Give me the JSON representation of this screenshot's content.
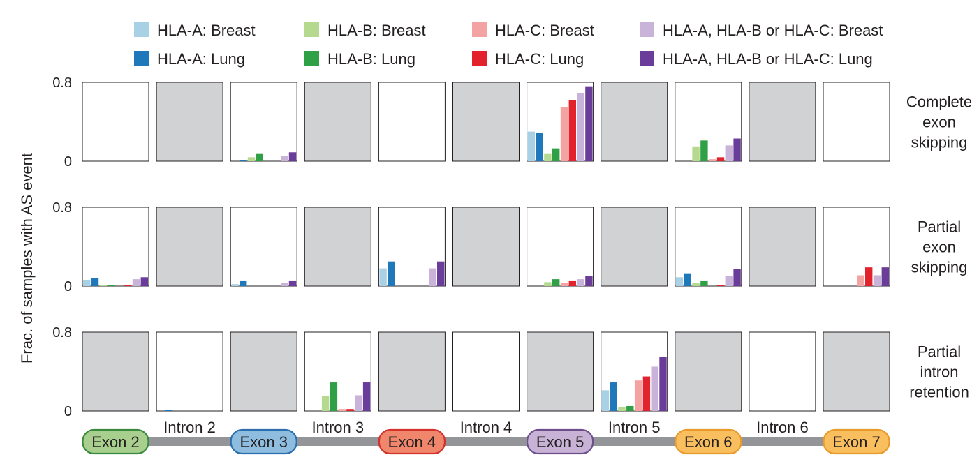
{
  "chart_data": {
    "type": "bar",
    "ylabel": "Frac. of samples with AS event",
    "ylim": [
      0,
      0.8
    ],
    "yticks": [
      "0",
      "0.8"
    ],
    "columns": [
      "Exon 2",
      "Intron 2",
      "Exon 3",
      "Intron 3",
      "Exon 4",
      "Intron 4",
      "Exon 5",
      "Intron 5",
      "Exon 6",
      "Intron 6",
      "Exon 7"
    ],
    "column_kinds": [
      "exon",
      "intron",
      "exon",
      "intron",
      "exon",
      "intron",
      "exon",
      "intron",
      "exon",
      "intron",
      "exon"
    ],
    "exon_colors": {
      "Exon 2": {
        "fill": "#a9cf8f",
        "stroke": "#3a8a3e"
      },
      "Exon 3": {
        "fill": "#8fbde0",
        "stroke": "#2a6fae"
      },
      "Exon 4": {
        "fill": "#f0876c",
        "stroke": "#d2312c"
      },
      "Exon 5": {
        "fill": "#c8b2d6",
        "stroke": "#6d4f8c"
      },
      "Exon 6": {
        "fill": "#f9be5e",
        "stroke": "#e89b2a"
      },
      "Exon 7": {
        "fill": "#f9be5e",
        "stroke": "#e89b2a"
      }
    },
    "legend": [
      {
        "label": "HLA-A: Breast",
        "color": "#a9d1e6"
      },
      {
        "label": "HLA-B: Breast",
        "color": "#b5d98f"
      },
      {
        "label": "HLA-C: Breast",
        "color": "#f4a3a3"
      },
      {
        "label": "HLA-A, HLA-B or HLA-C: Breast",
        "color": "#c9b3d8"
      },
      {
        "label": "HLA-A: Lung",
        "color": "#1f78b9"
      },
      {
        "label": "HLA-B: Lung",
        "color": "#2fa046"
      },
      {
        "label": "HLA-C: Lung",
        "color": "#e3232c"
      },
      {
        "label": "HLA-A, HLA-B or HLA-C: Lung",
        "color": "#6a3d9a"
      }
    ],
    "bar_order": [
      "HLA-A: Breast",
      "HLA-A: Lung",
      "HLA-B: Breast",
      "HLA-B: Lung",
      "HLA-C: Breast",
      "HLA-C: Lung",
      "HLA-A, HLA-B or HLA-C: Breast",
      "HLA-A, HLA-B or HLA-C: Lung"
    ],
    "bar_colors": [
      "#a9d1e6",
      "#1f78b9",
      "#b5d98f",
      "#2fa046",
      "#f4a3a3",
      "#e3232c",
      "#c9b3d8",
      "#6a3d9a"
    ],
    "na_color": "#d1d2d4",
    "rows": [
      {
        "label_lines": [
          "Complete",
          "exon",
          "skipping"
        ],
        "panels": [
          [
            0,
            0,
            0,
            0,
            0,
            0,
            0,
            0
          ],
          null,
          [
            0,
            0.01,
            0.04,
            0.08,
            0,
            0,
            0.05,
            0.09
          ],
          null,
          [
            0,
            0,
            0,
            0,
            0,
            0,
            0,
            0
          ],
          null,
          [
            0.3,
            0.29,
            0.08,
            0.13,
            0.55,
            0.62,
            0.69,
            0.76
          ],
          null,
          [
            0,
            0,
            0.15,
            0.21,
            0.02,
            0.04,
            0.16,
            0.23
          ],
          null,
          [
            0,
            0,
            0,
            0,
            0,
            0,
            0,
            0
          ]
        ]
      },
      {
        "label_lines": [
          "Partial",
          "exon",
          "skipping"
        ],
        "panels": [
          [
            0.06,
            0.08,
            0.01,
            0.01,
            0,
            0.01,
            0.07,
            0.09
          ],
          null,
          [
            0.02,
            0.05,
            0,
            0,
            0,
            0,
            0.03,
            0.05
          ],
          null,
          [
            0.18,
            0.25,
            0,
            0,
            0,
            0,
            0.18,
            0.25
          ],
          null,
          [
            0,
            0,
            0.04,
            0.07,
            0.03,
            0.05,
            0.07,
            0.1
          ],
          null,
          [
            0.09,
            0.13,
            0.03,
            0.05,
            0,
            0.01,
            0.1,
            0.17
          ],
          null,
          [
            0,
            0,
            0,
            0,
            0.11,
            0.19,
            0.11,
            0.19
          ]
        ]
      },
      {
        "label_lines": [
          "Partial",
          "intron",
          "retention"
        ],
        "panels": [
          null,
          [
            0,
            0.01,
            0,
            0,
            0,
            0,
            0,
            0
          ],
          null,
          [
            0,
            0,
            0.15,
            0.29,
            0.02,
            0.02,
            0.16,
            0.29
          ],
          null,
          [
            0,
            0,
            0,
            0,
            0,
            0,
            0,
            0
          ],
          null,
          [
            0.21,
            0.29,
            0.04,
            0.05,
            0.31,
            0.35,
            0.45,
            0.55
          ],
          null,
          [
            0,
            0,
            0,
            0,
            0,
            0,
            0,
            0
          ],
          null
        ]
      }
    ]
  }
}
